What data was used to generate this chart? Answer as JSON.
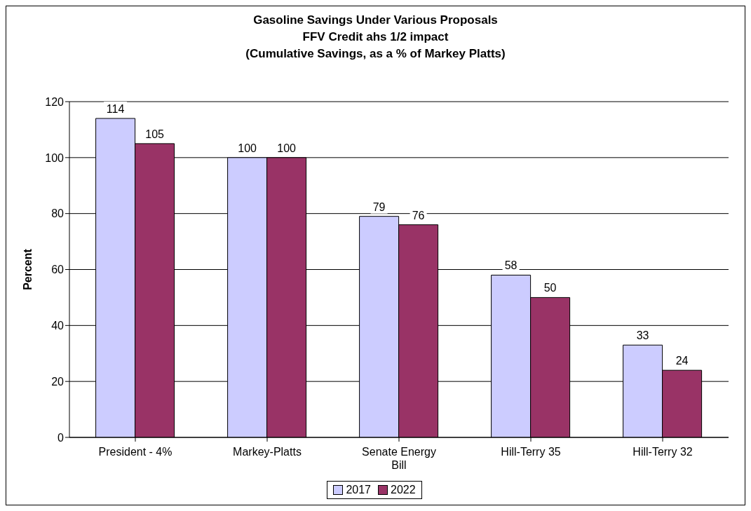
{
  "chart_data": {
    "type": "bar",
    "title": "Gasoline Savings Under Various Proposals\nFFV Credit ahs 1/2 impact\n(Cumulative Savings, as a % of Markey Platts)",
    "ylabel": "Percent",
    "categories": [
      "President - 4%",
      "Markey-Platts",
      "Senate Energy Bill",
      "Hill-Terry 35",
      "Hill-Terry 32"
    ],
    "series": [
      {
        "name": "2017",
        "color": "#ccccff",
        "values": [
          114,
          100,
          79,
          58,
          33
        ]
      },
      {
        "name": "2022",
        "color": "#993366",
        "values": [
          105,
          100,
          76,
          50,
          24
        ]
      }
    ],
    "ylim": [
      0,
      120
    ],
    "yticks": [
      0,
      20,
      40,
      60,
      80,
      100,
      120
    ],
    "grid": "y",
    "legend": "bottom",
    "data_labels": true
  }
}
